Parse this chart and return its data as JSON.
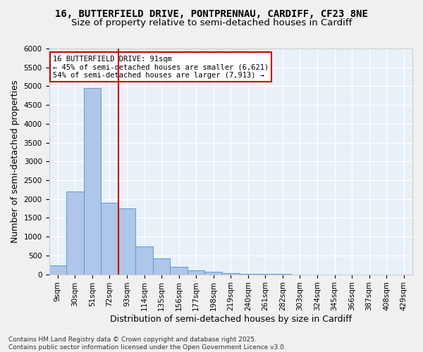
{
  "title_line1": "16, BUTTERFIELD DRIVE, PONTPRENNAU, CARDIFF, CF23 8NE",
  "title_line2": "Size of property relative to semi-detached houses in Cardiff",
  "xlabel": "Distribution of semi-detached houses by size in Cardiff",
  "ylabel": "Number of semi-detached properties",
  "footnote": "Contains HM Land Registry data © Crown copyright and database right 2025.\nContains public sector information licensed under the Open Government Licence v3.0.",
  "bin_labels": [
    "9sqm",
    "30sqm",
    "51sqm",
    "72sqm",
    "93sqm",
    "114sqm",
    "135sqm",
    "156sqm",
    "177sqm",
    "198sqm",
    "219sqm",
    "240sqm",
    "261sqm",
    "282sqm",
    "303sqm",
    "324sqm",
    "345sqm",
    "366sqm",
    "387sqm",
    "408sqm",
    "429sqm"
  ],
  "bar_values": [
    230,
    2200,
    4950,
    1900,
    1750,
    750,
    420,
    200,
    100,
    60,
    35,
    10,
    5,
    2,
    1,
    0,
    0,
    0,
    0,
    0,
    0
  ],
  "bar_color": "#aec6e8",
  "bar_edgecolor": "#5b9bd5",
  "vline_x": 3.5,
  "vline_color": "#cc0000",
  "annotation_text": "16 BUTTERFIELD DRIVE: 91sqm\n← 45% of semi-detached houses are smaller (6,621)\n54% of semi-detached houses are larger (7,913) →",
  "annotation_box_edgecolor": "#cc0000",
  "ylim": [
    0,
    6000
  ],
  "yticks": [
    0,
    500,
    1000,
    1500,
    2000,
    2500,
    3000,
    3500,
    4000,
    4500,
    5000,
    5500,
    6000
  ],
  "background_color": "#e8f0f8",
  "grid_color": "#ffffff",
  "fig_background": "#f0f0f0",
  "title_fontsize": 10,
  "subtitle_fontsize": 9.5,
  "axis_label_fontsize": 9,
  "tick_fontsize": 7.5,
  "annotation_fontsize": 7.5,
  "footnote_fontsize": 6.5
}
